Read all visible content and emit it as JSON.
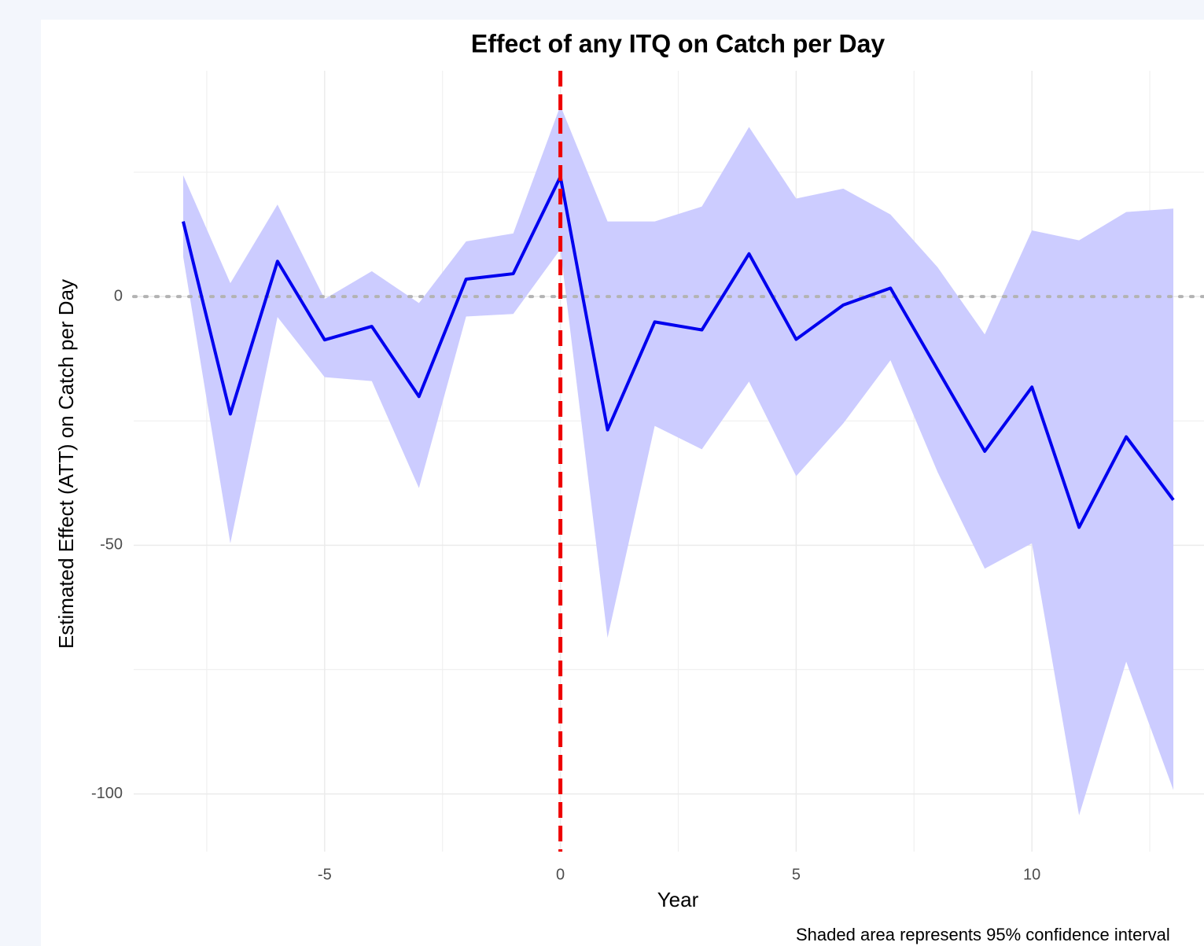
{
  "chart_data": {
    "type": "line",
    "title": "Effect of any ITQ on Catch per Day",
    "xlabel": "Year",
    "ylabel": "Estimated Effect (ATT) on Catch per Day",
    "caption": "Shaded area represents 95% confidence interval",
    "x": [
      -8,
      -7,
      -6,
      -5,
      -4,
      -3,
      -2,
      -1,
      0,
      1,
      2,
      3,
      4,
      5,
      6,
      7,
      8,
      9,
      10,
      11,
      12,
      13
    ],
    "values": [
      15.1,
      -23.6,
      7.1,
      -8.7,
      -6.0,
      -20.1,
      3.5,
      4.6,
      24.1,
      -26.8,
      -5.1,
      -6.7,
      8.6,
      -8.6,
      -1.7,
      1.7,
      -14.7,
      -31.1,
      -18.2,
      -46.4,
      -28.2,
      -40.9
    ],
    "upper": [
      24.4,
      2.7,
      18.5,
      -0.5,
      5.1,
      -1.3,
      11.1,
      12.7,
      38.4,
      15.1,
      15.1,
      18.1,
      34.1,
      19.7,
      21.7,
      16.5,
      5.9,
      -7.6,
      13.3,
      11.3,
      17.0,
      17.7
    ],
    "lower": [
      8.0,
      -49.6,
      -4.1,
      -16.2,
      -17.0,
      -38.5,
      -4.0,
      -3.5,
      9.5,
      -68.6,
      -26.0,
      -30.7,
      -17.1,
      -36.1,
      -25.5,
      -12.8,
      -35.3,
      -54.7,
      -49.6,
      -104.3,
      -73.4,
      -99.2
    ],
    "color": "#0000ee",
    "band_color": "#ccccff",
    "xlim": [
      -9.05,
      14.05
    ],
    "ylim": [
      -111.6,
      45.4
    ],
    "xticks": [
      -5,
      0,
      5,
      10
    ],
    "yticks": [
      -100,
      -50,
      0
    ],
    "xminor": [
      -7.5,
      -2.5,
      2.5,
      7.5,
      12.5
    ],
    "yminor": [
      -75,
      -25,
      25
    ],
    "vline": 0,
    "vline_color": "#ee0000",
    "hline": 0,
    "hline_color": "#b3b3b3",
    "grid": true
  }
}
